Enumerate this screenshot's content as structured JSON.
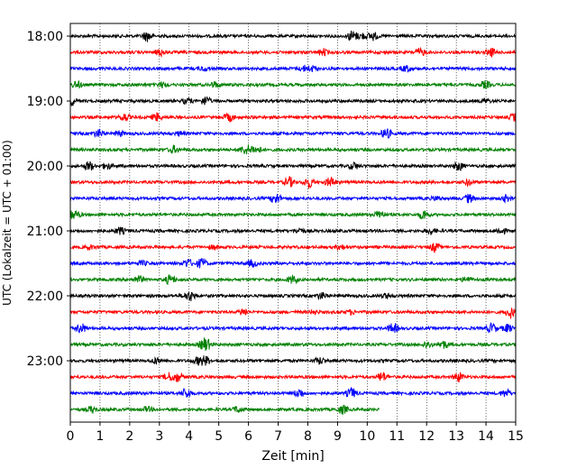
{
  "chart_data": {
    "type": "line",
    "title": "",
    "xlabel": "Zeit  [min]",
    "ylabel": "UTC (Lokalzeit = UTC + 01:00)",
    "xlim": [
      0,
      15
    ],
    "x_ticks": [
      0,
      1,
      2,
      3,
      4,
      5,
      6,
      7,
      8,
      9,
      10,
      11,
      12,
      13,
      14,
      15
    ],
    "y_tick_labels": [
      "18:00",
      "19:00",
      "20:00",
      "21:00",
      "22:00",
      "23:00"
    ],
    "grid": "vertical dotted at each minute",
    "trace_interval_min": 15,
    "trace_colors_cycle": [
      "#000000",
      "#ff0000",
      "#0000ff",
      "#008000"
    ],
    "traces": [
      {
        "start": "18:00",
        "end_min": 15
      },
      {
        "start": "18:15",
        "end_min": 15
      },
      {
        "start": "18:30",
        "end_min": 15
      },
      {
        "start": "18:45",
        "end_min": 15
      },
      {
        "start": "19:00",
        "end_min": 15
      },
      {
        "start": "19:15",
        "end_min": 15
      },
      {
        "start": "19:30",
        "end_min": 15
      },
      {
        "start": "19:45",
        "end_min": 15
      },
      {
        "start": "20:00",
        "end_min": 15
      },
      {
        "start": "20:15",
        "end_min": 15
      },
      {
        "start": "20:30",
        "end_min": 15
      },
      {
        "start": "20:45",
        "end_min": 15
      },
      {
        "start": "21:00",
        "end_min": 15
      },
      {
        "start": "21:15",
        "end_min": 15
      },
      {
        "start": "21:30",
        "end_min": 15
      },
      {
        "start": "21:45",
        "end_min": 15
      },
      {
        "start": "22:00",
        "end_min": 15
      },
      {
        "start": "22:15",
        "end_min": 15
      },
      {
        "start": "22:30",
        "end_min": 15
      },
      {
        "start": "22:45",
        "end_min": 15
      },
      {
        "start": "23:00",
        "end_min": 15
      },
      {
        "start": "23:15",
        "end_min": 15
      },
      {
        "start": "23:30",
        "end_min": 15
      },
      {
        "start": "23:45",
        "end_min": 10.4
      }
    ]
  }
}
